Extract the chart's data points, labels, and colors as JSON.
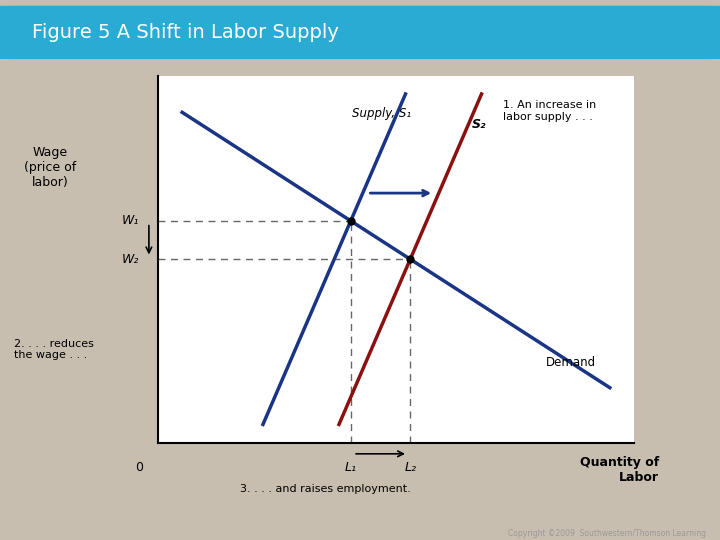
{
  "title": "Figure 5 A Shift in Labor Supply",
  "title_bg_color": "#29ABD4",
  "title_text_color": "#FFFFFF",
  "bg_color": "#C8BEB0",
  "plot_bg_color": "#FFFFFF",
  "ylabel": "Wage\n(price of\nlabor)",
  "xlabel_qty": "Quantity of\nLabor",
  "x_origin_label": "0",
  "supply1_label": "Supply, S₁",
  "supply2_label": "S₂",
  "demand_label": "Demand",
  "w1_label": "W₁",
  "w2_label": "W₂",
  "l1_label": "L₁",
  "l2_label": "L₂",
  "annot1": "1. An increase in\nlabor supply . . .",
  "annot2": "2. . . . reduces\nthe wage . . .",
  "annot3": "3. . . . and raises employment.",
  "supply1_color": "#1A3585",
  "supply2_color": "#8B1010",
  "demand_color": "#1A3585",
  "dashed_color": "#666666",
  "arrow_color": "#1A3585",
  "annot_bg": "#EEEEF0",
  "annot_border": "#BBBBBB",
  "copyright": "Copyright ©2009  Southwestern/Thomson Learning"
}
